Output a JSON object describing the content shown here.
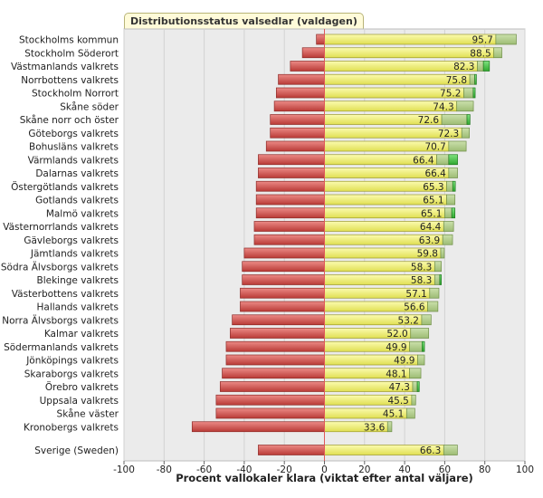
{
  "chart_data": {
    "type": "bar",
    "title": "Distributionsstatus valsedlar (valdagen)",
    "xlabel": "Procent vallokaler klara (viktat efter antal väljare)",
    "xlim": [
      -100,
      100
    ],
    "xticks": [
      -100,
      -80,
      -60,
      -40,
      -20,
      0,
      20,
      40,
      60,
      80,
      100
    ],
    "grid": true,
    "colors": {
      "negative": "#d9534f",
      "yellow": "#f0ef6e",
      "light_green": "#b3cf8c",
      "green": "#4cc84c",
      "plot_bg": "#ebebeb",
      "zero_line": "#e05a5a"
    },
    "rows": [
      {
        "label": "Stockholms kommun",
        "neg": -4,
        "yellow": 85.5,
        "light_green": 10.2,
        "green": 0,
        "value": "95.7"
      },
      {
        "label": "Stockholm Söderort",
        "neg": -11,
        "yellow": 84.5,
        "light_green": 4.0,
        "green": 0,
        "value": "88.5"
      },
      {
        "label": "Västmanlands valkrets",
        "neg": -17,
        "yellow": 76.3,
        "light_green": 3.0,
        "green": 3.0,
        "value": "82.3"
      },
      {
        "label": "Norrbottens valkrets",
        "neg": -23,
        "yellow": 72.5,
        "light_green": 2.5,
        "green": 0.8,
        "value": "75.8"
      },
      {
        "label": "Stockholm Norrort",
        "neg": -24,
        "yellow": 69.5,
        "light_green": 4.7,
        "green": 1.0,
        "value": "75.2"
      },
      {
        "label": "Skåne söder",
        "neg": -25,
        "yellow": 66.0,
        "light_green": 8.3,
        "green": 0,
        "value": "74.3"
      },
      {
        "label": "Skåne norr och öster",
        "neg": -27,
        "yellow": 58.5,
        "light_green": 12.6,
        "green": 1.5,
        "value": "72.6"
      },
      {
        "label": "Göteborgs valkrets",
        "neg": -27,
        "yellow": 68.5,
        "light_green": 3.8,
        "green": 0,
        "value": "72.3"
      },
      {
        "label": "Bohusläns valkrets",
        "neg": -29,
        "yellow": 62.0,
        "light_green": 8.7,
        "green": 0,
        "value": "70.7"
      },
      {
        "label": "Värmlands valkrets",
        "neg": -33,
        "yellow": 56.0,
        "light_green": 6.0,
        "green": 4.4,
        "value": "66.4"
      },
      {
        "label": "Dalarnas valkrets",
        "neg": -33,
        "yellow": 62.0,
        "light_green": 4.4,
        "green": 0,
        "value": "66.4"
      },
      {
        "label": "Östergötlands valkrets",
        "neg": -34,
        "yellow": 61.0,
        "light_green": 3.0,
        "green": 1.3,
        "value": "65.3"
      },
      {
        "label": "Gotlands valkrets",
        "neg": -34,
        "yellow": 61.0,
        "light_green": 4.1,
        "green": 0,
        "value": "65.1"
      },
      {
        "label": "Malmö valkrets",
        "neg": -34,
        "yellow": 60.0,
        "light_green": 3.5,
        "green": 1.6,
        "value": "65.1"
      },
      {
        "label": "Västernorrlands valkrets",
        "neg": -35,
        "yellow": 59.5,
        "light_green": 4.9,
        "green": 0,
        "value": "64.4"
      },
      {
        "label": "Gävleborgs valkrets",
        "neg": -35,
        "yellow": 59.0,
        "light_green": 4.9,
        "green": 0,
        "value": "63.9"
      },
      {
        "label": "Jämtlands valkrets",
        "neg": -40,
        "yellow": 58.0,
        "light_green": 1.8,
        "green": 0,
        "value": "59.8"
      },
      {
        "label": "Södra Älvsborgs valkrets",
        "neg": -41,
        "yellow": 55.0,
        "light_green": 3.3,
        "green": 0,
        "value": "58.3"
      },
      {
        "label": "Blekinge valkrets",
        "neg": -41,
        "yellow": 55.0,
        "light_green": 2.5,
        "green": 0.8,
        "value": "58.3"
      },
      {
        "label": "Västerbottens valkrets",
        "neg": -42,
        "yellow": 52.5,
        "light_green": 4.6,
        "green": 0,
        "value": "57.1"
      },
      {
        "label": "Hallands valkrets",
        "neg": -42,
        "yellow": 51.5,
        "light_green": 5.1,
        "green": 0,
        "value": "56.6"
      },
      {
        "label": "Norra Älvsborgs valkrets",
        "neg": -46,
        "yellow": 48.5,
        "light_green": 4.7,
        "green": 0,
        "value": "53.2"
      },
      {
        "label": "Kalmar valkrets",
        "neg": -47,
        "yellow": 43.0,
        "light_green": 9.0,
        "green": 0,
        "value": "52.0"
      },
      {
        "label": "Södermanlands valkrets",
        "neg": -49,
        "yellow": 42.5,
        "light_green": 6.2,
        "green": 1.2,
        "value": "49.9"
      },
      {
        "label": "Jönköpings valkrets",
        "neg": -49,
        "yellow": 46.5,
        "light_green": 3.4,
        "green": 0,
        "value": "49.9"
      },
      {
        "label": "Skaraborgs valkrets",
        "neg": -51,
        "yellow": 42.5,
        "light_green": 5.6,
        "green": 0,
        "value": "48.1"
      },
      {
        "label": "Örebro valkrets",
        "neg": -52,
        "yellow": 44.0,
        "light_green": 2.3,
        "green": 1.0,
        "value": "47.3"
      },
      {
        "label": "Uppsala valkrets",
        "neg": -54,
        "yellow": 43.5,
        "light_green": 2.0,
        "green": 0,
        "value": "45.5"
      },
      {
        "label": "Skåne väster",
        "neg": -54,
        "yellow": 41.0,
        "light_green": 4.1,
        "green": 0,
        "value": "45.1"
      },
      {
        "label": "Kronobergs valkrets",
        "neg": -66,
        "yellow": 31.5,
        "light_green": 2.1,
        "green": 0,
        "value": "33.6"
      }
    ],
    "summary_row": {
      "label": "Sverige (Sweden)",
      "neg": -33,
      "yellow": 59.5,
      "light_green": 6.8,
      "green": 0,
      "value": "66.3"
    }
  }
}
